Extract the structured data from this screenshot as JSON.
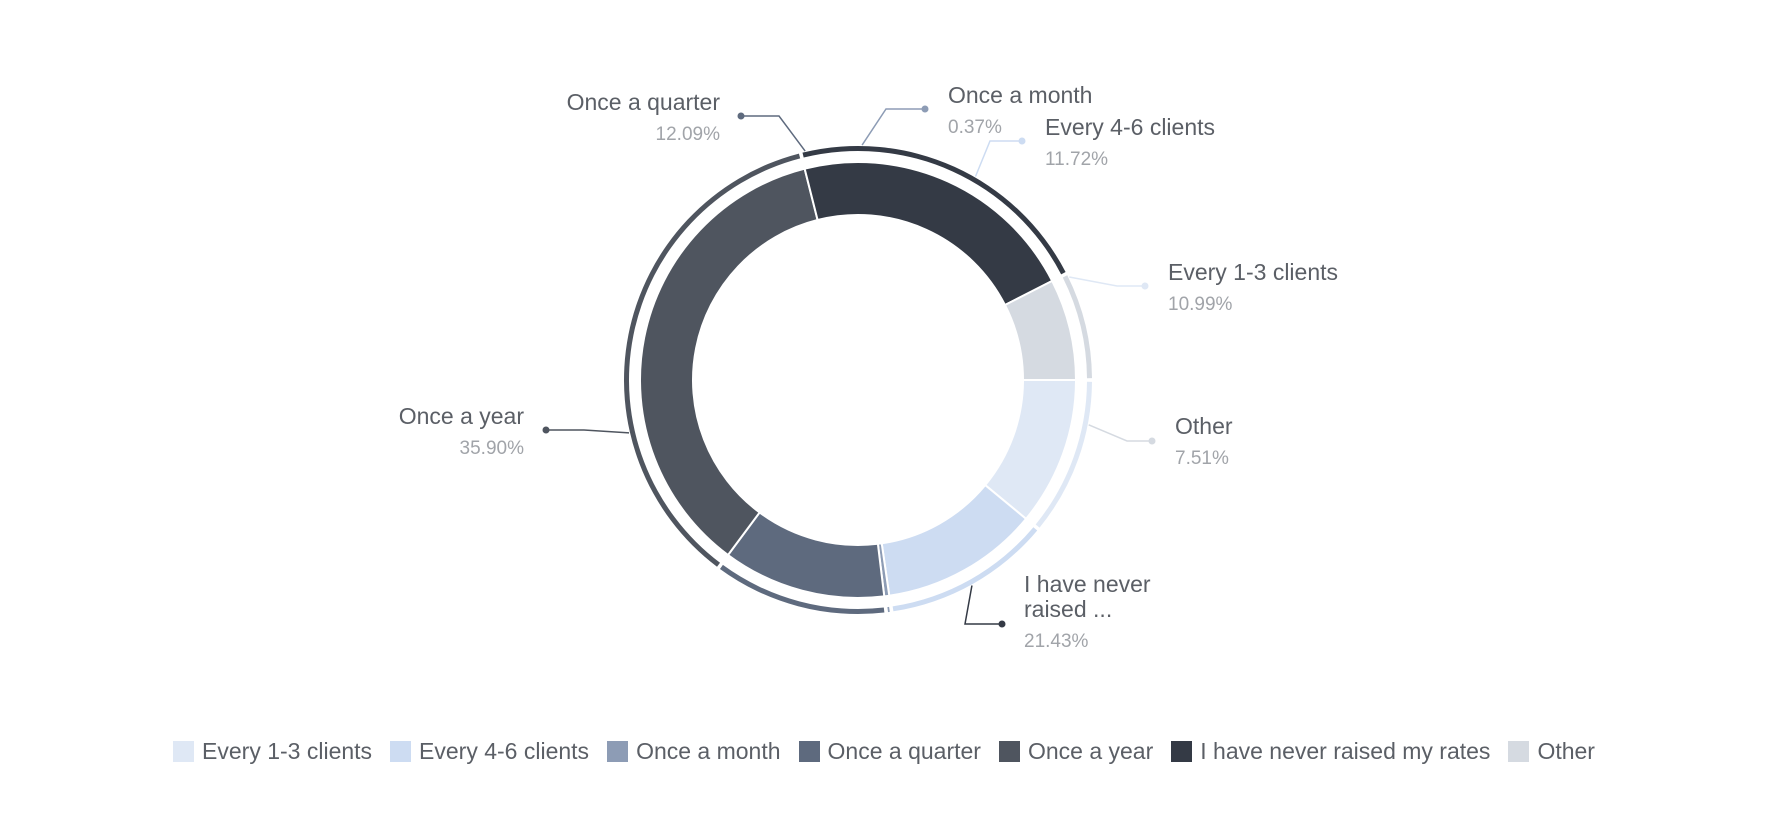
{
  "chart_data": {
    "type": "pie",
    "donut": true,
    "slices": [
      {
        "label": "Every 1-3 clients",
        "display_label": [
          "Every 1-3 clients"
        ],
        "value": 10.99,
        "value_text": "10.99%",
        "color": "#dfe8f5",
        "outer_color": "#dfe8f5"
      },
      {
        "label": "Every 4-6 clients",
        "display_label": [
          "Every 4-6 clients"
        ],
        "value": 11.72,
        "value_text": "11.72%",
        "color": "#cddcf2",
        "outer_color": "#cddcf2"
      },
      {
        "label": "Once a month",
        "display_label": [
          "Once a month"
        ],
        "value": 0.37,
        "value_text": "0.37%",
        "color": "#8d9cb5",
        "outer_color": "#8d9cb5"
      },
      {
        "label": "Once a quarter",
        "display_label": [
          "Once a quarter"
        ],
        "value": 12.09,
        "value_text": "12.09%",
        "color": "#5e6a7e",
        "outer_color": "#5e6a7e"
      },
      {
        "label": "Once a year",
        "display_label": [
          "Once a year"
        ],
        "value": 35.9,
        "value_text": "35.90%",
        "color": "#4f555f",
        "outer_color": "#4f555f"
      },
      {
        "label": "I have never raised my rates",
        "display_label": [
          "I have never",
          "raised ..."
        ],
        "value": 21.43,
        "value_text": "21.43%",
        "color": "#343a45",
        "outer_color": "#343a45"
      },
      {
        "label": "Other",
        "display_label": [
          "Other"
        ],
        "value": 7.51,
        "value_text": "7.51%",
        "color": "#d5dae1",
        "outer_color": "#d5dae1"
      }
    ],
    "legend_position": "bottom",
    "start_angle_deg": 90,
    "direction": "clockwise"
  }
}
